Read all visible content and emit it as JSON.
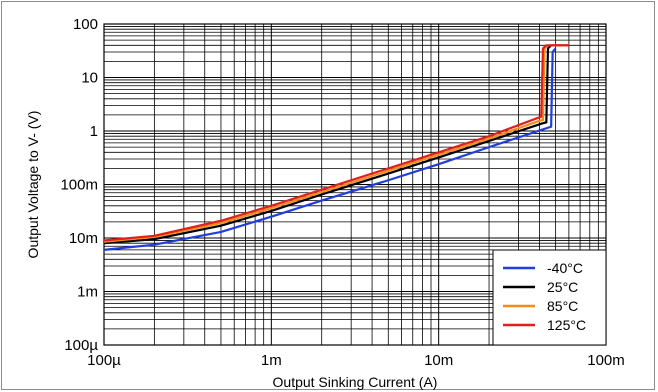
{
  "chart_data": {
    "type": "line",
    "x_scale": "log",
    "y_scale": "log",
    "xlabel": "Output Sinking Current (A)",
    "ylabel": "Output Voltage to V- (V)",
    "xlim": [
      0.0001,
      0.1
    ],
    "ylim": [
      0.0001,
      100
    ],
    "x_ticks": [
      {
        "value": 0.0001,
        "label": "100µ"
      },
      {
        "value": 0.001,
        "label": "1m"
      },
      {
        "value": 0.01,
        "label": "10m"
      },
      {
        "value": 0.1,
        "label": "100m"
      }
    ],
    "y_ticks": [
      {
        "value": 100,
        "label": "100"
      },
      {
        "value": 10,
        "label": "10"
      },
      {
        "value": 1,
        "label": "1"
      },
      {
        "value": 0.1,
        "label": "100m"
      },
      {
        "value": 0.01,
        "label": "10m"
      },
      {
        "value": 0.001,
        "label": "1m"
      },
      {
        "value": 0.0001,
        "label": "100µ"
      }
    ],
    "grid": true,
    "legend_position": "bottom-right",
    "series": [
      {
        "name": "-40°C",
        "color": "#1f3ee0",
        "x": [
          0.0001,
          0.0002,
          0.0005,
          0.001,
          0.002,
          0.005,
          0.01,
          0.02,
          0.045,
          0.047,
          0.048,
          0.05
        ],
        "y": [
          0.006,
          0.0075,
          0.013,
          0.025,
          0.05,
          0.12,
          0.24,
          0.5,
          1.15,
          1.2,
          30,
          35
        ]
      },
      {
        "name": "25°C",
        "color": "#000000",
        "x": [
          0.0001,
          0.0002,
          0.0005,
          0.001,
          0.002,
          0.005,
          0.01,
          0.02,
          0.042,
          0.044,
          0.045,
          0.047,
          0.06
        ],
        "y": [
          0.008,
          0.0095,
          0.017,
          0.032,
          0.065,
          0.16,
          0.32,
          0.65,
          1.4,
          1.45,
          35,
          40,
          40
        ]
      },
      {
        "name": "85°C",
        "color": "#f08c1c",
        "x": [
          0.0001,
          0.0002,
          0.0005,
          0.001,
          0.002,
          0.005,
          0.01,
          0.02,
          0.04,
          0.042,
          0.043,
          0.045,
          0.06
        ],
        "y": [
          0.0085,
          0.0105,
          0.019,
          0.036,
          0.072,
          0.18,
          0.36,
          0.72,
          1.55,
          1.6,
          35,
          40,
          40
        ]
      },
      {
        "name": "125°C",
        "color": "#e0201c",
        "x": [
          0.0001,
          0.0002,
          0.0005,
          0.001,
          0.002,
          0.005,
          0.01,
          0.02,
          0.04,
          0.041,
          0.042,
          0.044,
          0.06
        ],
        "y": [
          0.009,
          0.011,
          0.021,
          0.04,
          0.08,
          0.2,
          0.4,
          0.8,
          1.8,
          1.85,
          35,
          40,
          40
        ]
      }
    ]
  }
}
